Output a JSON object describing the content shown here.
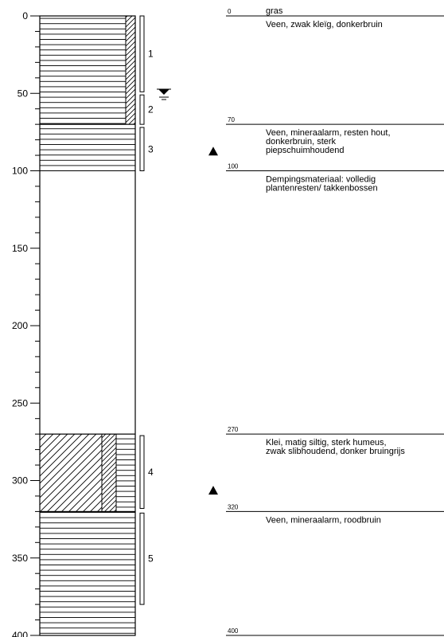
{
  "depth_axis": {
    "ticks": [
      "0",
      "50",
      "100",
      "150",
      "200",
      "250",
      "300",
      "350",
      "400"
    ],
    "min": 0,
    "max": 400
  },
  "water_level_symbol": "groundwater-level-icon",
  "layers": [
    {
      "top": 0,
      "bottom": 70,
      "pattern": "hatch-horizontal-with-diagonal"
    },
    {
      "top": 70,
      "bottom": 100,
      "pattern": "hatch-horizontal"
    },
    {
      "top": 100,
      "bottom": 270,
      "pattern": "empty"
    },
    {
      "top": 270,
      "bottom": 320,
      "pattern": "diagonal-with-horizontal"
    },
    {
      "top": 320,
      "bottom": 400,
      "pattern": "hatch-horizontal"
    }
  ],
  "samples": [
    {
      "label": "1",
      "top": 0,
      "bottom": 49
    },
    {
      "label": "2",
      "top": 51,
      "bottom": 70
    },
    {
      "label": "3",
      "top": 72,
      "bottom": 100
    },
    {
      "label": "4",
      "top": 271,
      "bottom": 318
    },
    {
      "label": "5",
      "top": 321,
      "bottom": 380
    }
  ],
  "triangles": [
    {
      "depth": 87
    },
    {
      "depth": 306
    }
  ],
  "descriptions": [
    {
      "depth_label": "0",
      "depth": 0,
      "lines": [
        "gras",
        "Veen, zwak kleïg, donkerbruin"
      ]
    },
    {
      "depth_label": "70",
      "depth": 70,
      "lines": [
        "Veen, mineraalarm, resten hout,",
        "donkerbruin, sterk",
        "piepschuimhoudend"
      ]
    },
    {
      "depth_label": "100",
      "depth": 100,
      "lines": [
        "Dempingsmateriaal: volledig",
        "plantenresten/ takkenbossen"
      ]
    },
    {
      "depth_label": "270",
      "depth": 270,
      "lines": [
        "Klei, matig siltig, sterk humeus,",
        "zwak slibhoudend, donker bruingrijs"
      ]
    },
    {
      "depth_label": "320",
      "depth": 320,
      "lines": [
        "Veen, mineraalarm, roodbruin"
      ]
    },
    {
      "depth_label": "400",
      "depth": 400,
      "lines": []
    }
  ]
}
